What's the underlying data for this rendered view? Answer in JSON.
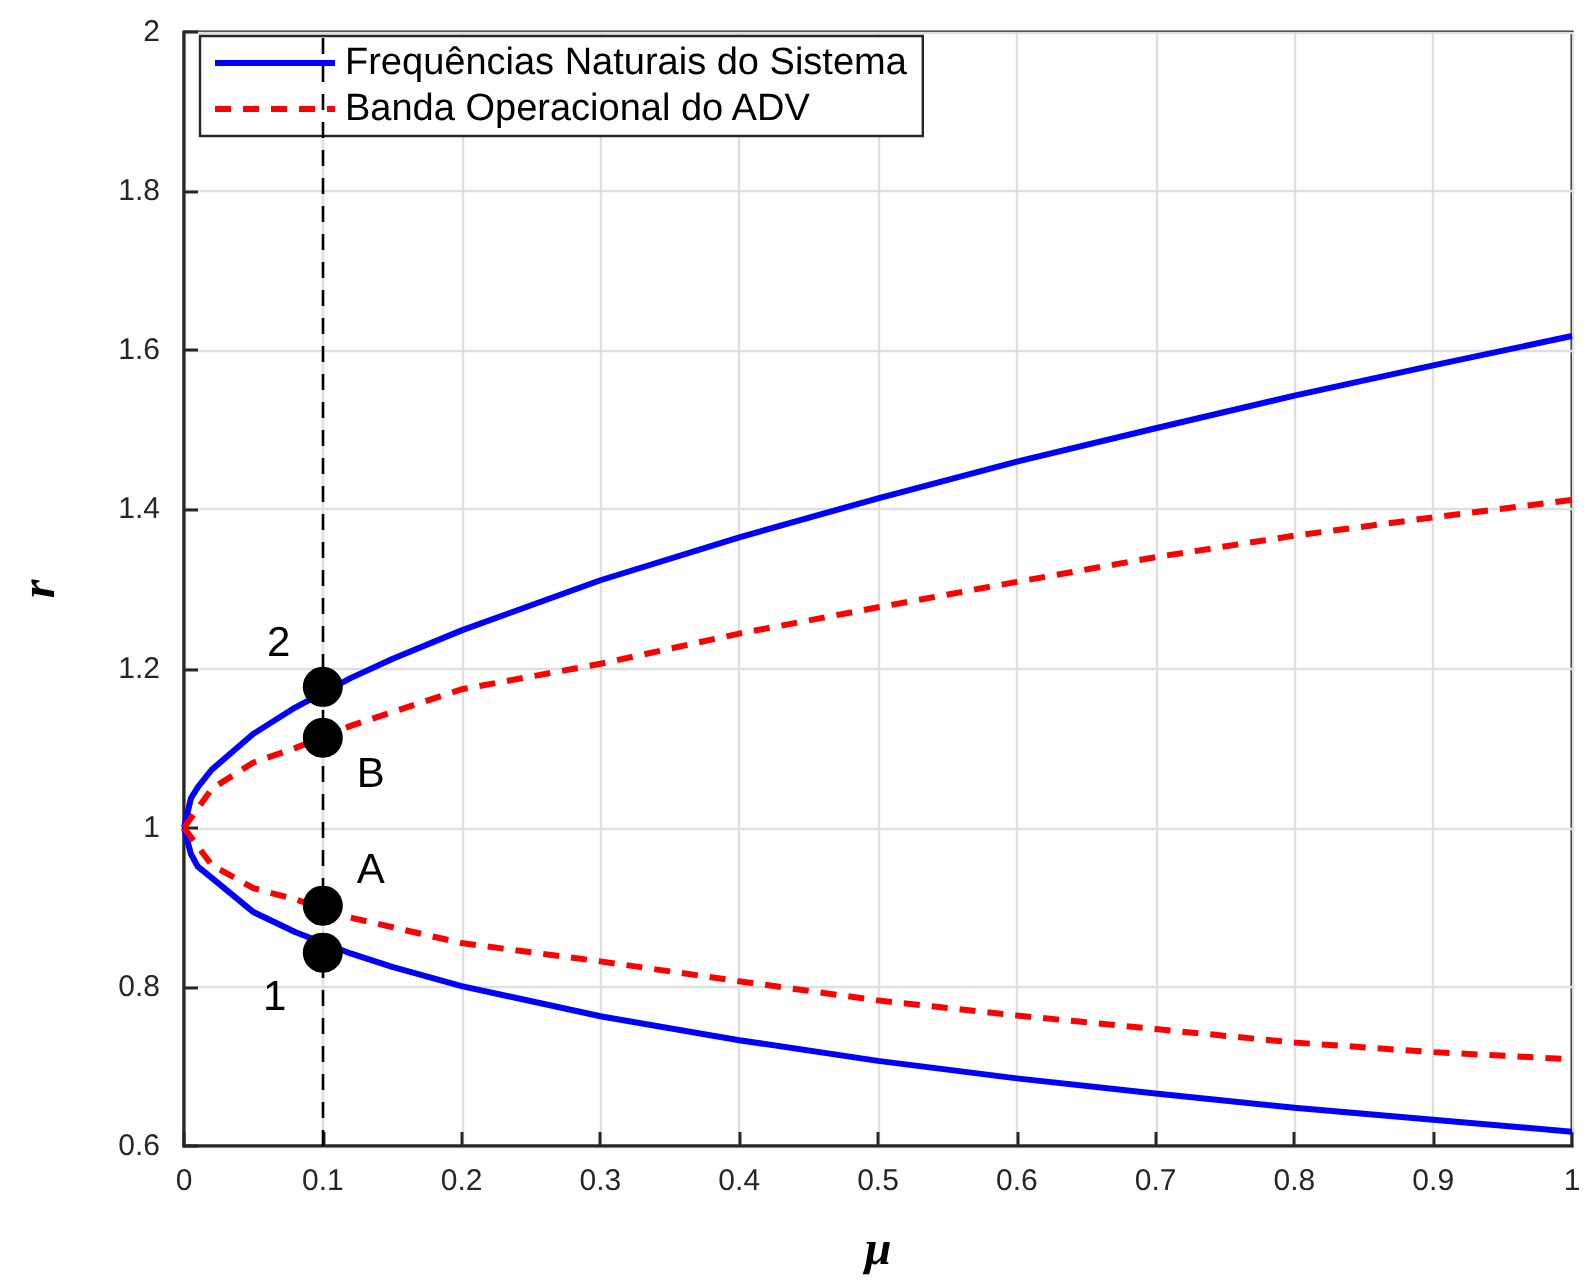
{
  "chart_data": {
    "type": "line",
    "xlabel": "μ",
    "ylabel": "r",
    "xlim": [
      0,
      1
    ],
    "xticks": [
      0,
      0.1,
      0.2,
      0.3,
      0.4,
      0.5,
      0.6,
      0.7,
      0.8,
      0.9,
      1
    ],
    "ylim": [
      0.6,
      2
    ],
    "yticks": [
      0.6,
      0.8,
      1,
      1.2,
      1.4,
      1.6,
      1.8,
      2
    ],
    "grid": true,
    "legend": "top left",
    "series": [
      {
        "name": "Frequências Naturais do Sistema",
        "color": "#0000ff",
        "line_style": "solid",
        "x": [
          0,
          0.005,
          0.01,
          0.02,
          0.05,
          0.08,
          0.12,
          0.15,
          0.2,
          0.3,
          0.4,
          0.5,
          0.6,
          0.7,
          0.8,
          0.9,
          1
        ],
        "values": [
          1,
          1.037,
          1.051,
          1.073,
          1.118,
          1.151,
          1.188,
          1.212,
          1.248,
          1.311,
          1.365,
          1.414,
          1.46,
          1.502,
          1.543,
          1.581,
          1.618
        ]
      },
      {
        "color": "#0000ff",
        "line_style": "solid",
        "x": [
          0,
          0.005,
          0.01,
          0.02,
          0.05,
          0.08,
          0.12,
          0.15,
          0.2,
          0.3,
          0.4,
          0.5,
          0.6,
          0.7,
          0.8,
          0.9,
          1
        ],
        "values": [
          1,
          0.967,
          0.951,
          0.937,
          0.894,
          0.869,
          0.842,
          0.825,
          0.801,
          0.763,
          0.733,
          0.707,
          0.685,
          0.666,
          0.648,
          0.633,
          0.618
        ]
      },
      {
        "name": "Banda Operacional do ADV",
        "color": "#ff0000",
        "line_style": "dashed",
        "x": [
          0,
          0.02,
          0.05,
          0.08,
          0.12,
          0.2,
          0.3,
          0.4,
          0.5,
          0.6,
          0.7,
          0.8,
          0.9,
          1
        ],
        "values": [
          1,
          1.049,
          1.082,
          1.1,
          1.128,
          1.174,
          1.206,
          1.244,
          1.277,
          1.309,
          1.34,
          1.367,
          1.39,
          1.412
        ]
      },
      {
        "color": "#ff0000",
        "line_style": "dashed",
        "x": [
          0,
          0.02,
          0.05,
          0.08,
          0.12,
          0.2,
          0.3,
          0.4,
          0.5,
          0.6,
          0.7,
          0.8,
          0.9,
          1
        ],
        "values": [
          1,
          0.953,
          0.924,
          0.91,
          0.887,
          0.855,
          0.832,
          0.807,
          0.783,
          0.764,
          0.747,
          0.73,
          0.718,
          0.709
        ]
      },
      {
        "type": "scatter",
        "color": "#000000",
        "marker": "circle",
        "x": [
          0.1,
          0.1,
          0.1,
          0.1
        ],
        "values": [
          1.177,
          1.113,
          0.902,
          0.843
        ]
      }
    ],
    "ref_lines": [
      {
        "axis": "x",
        "value": 0.1,
        "color": "#000000",
        "line_style": "dashed"
      }
    ],
    "annotations": [
      "2",
      "B",
      "A",
      "1"
    ]
  }
}
